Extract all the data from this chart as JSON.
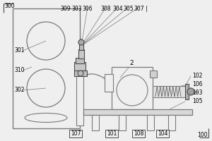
{
  "bg_color": "#efefef",
  "lc": "#7a7a7a",
  "dc": "#4a4a4a",
  "fig_w": 3.0,
  "fig_h": 2.0,
  "dpi": 100
}
